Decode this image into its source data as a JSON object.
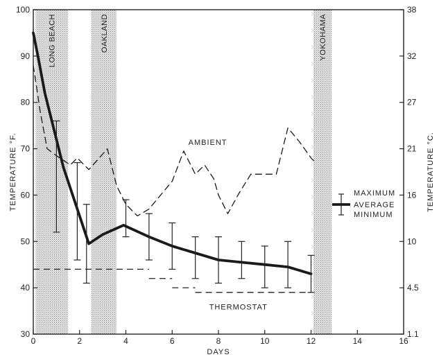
{
  "chart_data": {
    "type": "line",
    "xlabel": "DAYS",
    "ylabel_left": "TEMPERATURE °F.",
    "ylabel_right": "TEMPERATURE °C.",
    "xlim": [
      0,
      16
    ],
    "ylim_left": [
      30,
      100
    ],
    "x_ticks": [
      0,
      2,
      4,
      6,
      8,
      10,
      12,
      14,
      16
    ],
    "y_ticks_left": [
      30,
      40,
      50,
      60,
      70,
      80,
      90,
      100
    ],
    "y_ticks_right": [
      {
        "label": "1.1",
        "f": 30
      },
      {
        "label": "4.5",
        "f": 40
      },
      {
        "label": "10",
        "f": 50
      },
      {
        "label": "16",
        "f": 60
      },
      {
        "label": "21",
        "f": 70
      },
      {
        "label": "27",
        "f": 80
      },
      {
        "label": "32",
        "f": 90
      },
      {
        "label": "38",
        "f": 100
      }
    ],
    "bands": [
      {
        "label": "LONG BEACH",
        "x0": 0.1,
        "x1": 1.5
      },
      {
        "label": "OAKLAND",
        "x0": 2.5,
        "x1": 3.6
      },
      {
        "label": "YOKOHAMA",
        "x0": 12.1,
        "x1": 12.9
      }
    ],
    "series": [
      {
        "name": "AVERAGE",
        "style": "solid-thick",
        "x": [
          0,
          0.2,
          0.5,
          1.0,
          1.3,
          2.4,
          3.0,
          3.9,
          5.0,
          6.0,
          7.0,
          8.0,
          9.0,
          10.0,
          11.0,
          12.0
        ],
        "y": [
          95,
          90,
          82,
          72,
          66,
          49.5,
          51.5,
          53.5,
          51,
          49,
          47.5,
          46,
          45.5,
          45,
          44.5,
          43
        ]
      },
      {
        "name": "AMBIENT",
        "style": "dashed",
        "x": [
          0,
          0.3,
          0.6,
          1.0,
          1.6,
          1.9,
          2.4,
          3.2,
          3.6,
          4.0,
          4.5,
          5.0,
          5.5,
          6.0,
          6.5,
          7.0,
          7.4,
          7.8,
          8.0,
          8.4,
          8.9,
          9.4,
          10.0,
          10.5,
          11.0,
          11.5,
          12.0,
          12.2
        ],
        "y": [
          88,
          78,
          70,
          68.5,
          66.5,
          68,
          65.5,
          70,
          62,
          58,
          55.5,
          57,
          60,
          63,
          69.5,
          64.5,
          66.5,
          63.5,
          60,
          56,
          60.5,
          64.5,
          64.5,
          64.5,
          74.5,
          71.5,
          68,
          67
        ]
      },
      {
        "name": "THERMOSTAT",
        "style": "dashed",
        "segments": [
          {
            "x": [
              0,
              5
            ],
            "y": [
              44,
              44
            ]
          },
          {
            "x": [
              5,
              6
            ],
            "y": [
              42,
              42
            ]
          },
          {
            "x": [
              6,
              7
            ],
            "y": [
              40,
              40
            ]
          },
          {
            "x": [
              7,
              12
            ],
            "y": [
              39,
              39
            ]
          }
        ]
      }
    ],
    "error_bars": [
      {
        "x": 1.0,
        "max": 76,
        "min": 52
      },
      {
        "x": 1.9,
        "max": 67,
        "min": 46
      },
      {
        "x": 2.3,
        "max": 58,
        "min": 41
      },
      {
        "x": 4.0,
        "max": 59,
        "min": 51
      },
      {
        "x": 5.0,
        "max": 56,
        "min": 46
      },
      {
        "x": 6.0,
        "max": 54,
        "min": 44
      },
      {
        "x": 7.0,
        "max": 51,
        "min": 42
      },
      {
        "x": 8.0,
        "max": 51,
        "min": 41
      },
      {
        "x": 9.0,
        "max": 50,
        "min": 42
      },
      {
        "x": 10.0,
        "max": 49,
        "min": 40
      },
      {
        "x": 11.0,
        "max": 50,
        "min": 40
      },
      {
        "x": 12.0,
        "max": 47,
        "min": 39
      }
    ],
    "annotations": [
      {
        "text": "AMBIENT",
        "x": 6.7,
        "y": 70.8
      },
      {
        "text": "THERMOSTAT",
        "x": 7.6,
        "y": 35.3
      }
    ],
    "legend": {
      "placement": "right",
      "items": [
        "MAXIMUM",
        "AVERAGE",
        "MINIMUM"
      ]
    },
    "grid": false
  }
}
